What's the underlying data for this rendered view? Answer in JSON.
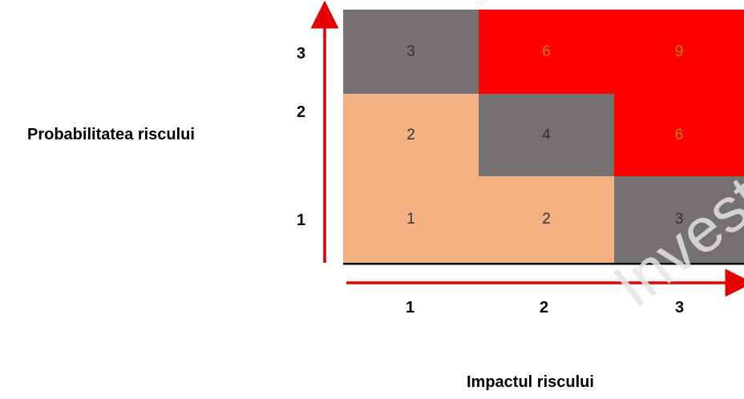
{
  "title_y": "Probabilitatea riscului",
  "title_x": "Impactul riscului",
  "y_ticks": [
    "3",
    "2",
    "1"
  ],
  "x_ticks": [
    "1",
    "2",
    "3"
  ],
  "watermark": "Invest Con",
  "colors": {
    "low": "#F4B183",
    "medium": "#767171",
    "high": "#FF0000",
    "axis": "#E60000",
    "cell_text_high": "#B8860B",
    "cell_text": "#333333"
  },
  "matrix": {
    "rows": [
      {
        "probability": "3",
        "cells": [
          {
            "value": "3",
            "level": "medium"
          },
          {
            "value": "6",
            "level": "high"
          },
          {
            "value": "9",
            "level": "high"
          }
        ]
      },
      {
        "probability": "2",
        "cells": [
          {
            "value": "2",
            "level": "low"
          },
          {
            "value": "4",
            "level": "medium"
          },
          {
            "value": "6",
            "level": "high"
          }
        ]
      },
      {
        "probability": "1",
        "cells": [
          {
            "value": "1",
            "level": "low"
          },
          {
            "value": "2",
            "level": "low"
          },
          {
            "value": "3",
            "level": "medium"
          }
        ]
      }
    ]
  }
}
